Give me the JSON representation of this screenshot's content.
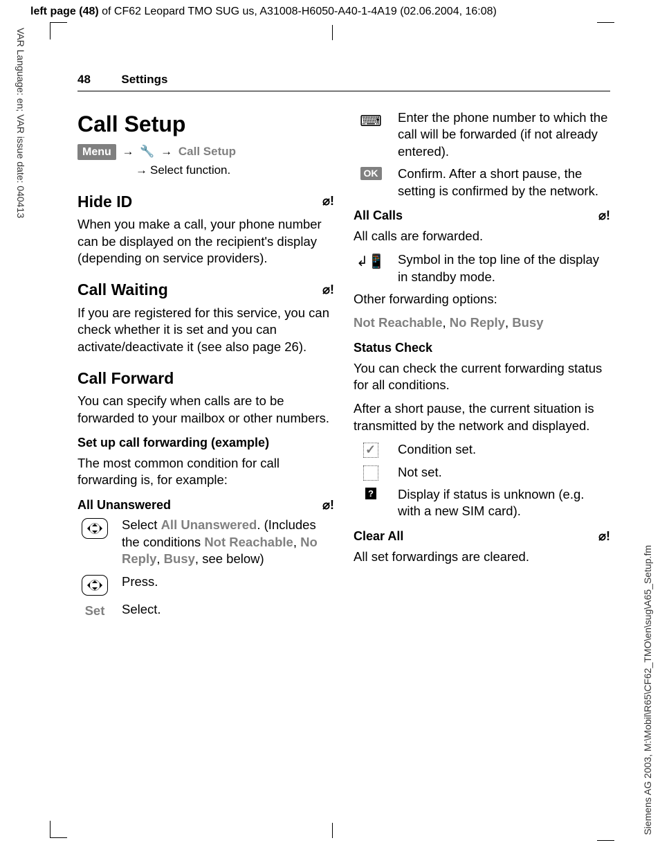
{
  "meta": {
    "banner_bold": "left page (48)",
    "banner_rest": " of CF62 Leopard TMO SUG us, A31008-H6050-A40-1-4A19 (02.06.2004, 16:08)",
    "left_vertical": "VAR Language: en; VAR issue date: 040413",
    "right_vertical": "Siemens AG 2003, M:\\Mobil\\R65\\CF62_TMO\\en\\sug\\A65_Setup.fm"
  },
  "header": {
    "pagenum": "48",
    "section": "Settings"
  },
  "left": {
    "title": "Call Setup",
    "menu_label": "Menu",
    "nav_target": "Call Setup",
    "nav_sub": "Select function.",
    "hide_id": {
      "heading": "Hide ID",
      "body": "When you make a call, your phone number can be displayed on the recipient's display (depending on service providers)."
    },
    "call_waiting": {
      "heading": "Call Waiting",
      "body": "If you are registered for this service, you can check whether it is set and you can activate/deactivate it (see also page 26)."
    },
    "call_forward": {
      "heading": "Call Forward",
      "intro": "You can specify when calls are to be forwarded to your mailbox or other numbers.",
      "example_heading": "Set up call forwarding (example)",
      "example_intro": "The most common condition for call forwarding is, for example:",
      "all_unanswered_heading": "All Unanswered",
      "step1a": "Select ",
      "step1a_gray": "All Unanswered",
      "step1b": ". (Includes the conditions ",
      "cond1": "Not Reachable",
      "cond2": "No Reply",
      "cond3": "Busy",
      "step1c": ", see below)",
      "step2": "Press.",
      "set_label": "Set",
      "step3": "Select."
    }
  },
  "right": {
    "enter_number": "Enter the phone number to which the call will be forwarded (if not already entered).",
    "ok_label": "OK",
    "confirm": "Confirm. After a short pause, the setting is confirmed by the network.",
    "all_calls_heading": "All Calls",
    "all_calls_body": "All calls are forwarded.",
    "symbol_body": "Symbol in the top line of the display in standby mode.",
    "other_fwd": "Other forwarding options:",
    "opts": {
      "a": "Not Reachable",
      "b": "No Reply",
      "c": "Busy"
    },
    "status_heading": "Status Check",
    "status_p1": "You can check the current forwarding status for all conditions.",
    "status_p2": "After a short pause, the current situation is transmitted by the network and displayed.",
    "cond_set": "Condition set.",
    "not_set": "Not set.",
    "unknown": "Display if status is unknown (e.g. with a new SIM card).",
    "clear_heading": "Clear All",
    "clear_body": "All set forwardings are cleared."
  },
  "style": {
    "gray_color": "#808080",
    "sim_icon_glyph": "⌂!"
  }
}
